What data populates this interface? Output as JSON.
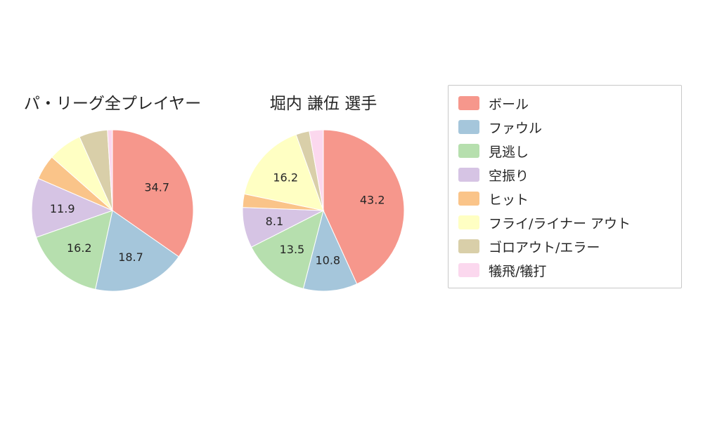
{
  "figure": {
    "background": "#ffffff",
    "text_color": "#262626"
  },
  "palette": [
    "#f6978c",
    "#a5c6db",
    "#b6dfae",
    "#d6c4e4",
    "#fac489",
    "#ffffc3",
    "#d9cfa9",
    "#fbd8ee"
  ],
  "legend": {
    "position": "right",
    "items": [
      {
        "label": "ボール",
        "color": "#f6978c"
      },
      {
        "label": "ファウル",
        "color": "#a5c6db"
      },
      {
        "label": "見逃し",
        "color": "#b6dfae"
      },
      {
        "label": "空振り",
        "color": "#d6c4e4"
      },
      {
        "label": "ヒット",
        "color": "#fac489"
      },
      {
        "label": "フライ/ライナー アウト",
        "color": "#ffffc3"
      },
      {
        "label": "ゴロアウト/エラー",
        "color": "#d9cfa9"
      },
      {
        "label": "犠飛/犠打",
        "color": "#fbd8ee"
      }
    ]
  },
  "chart_data": [
    {
      "type": "pie",
      "title": "パ・リーグ全プレイヤー",
      "start_angle_deg": 0,
      "direction": "clockwise",
      "slices": [
        {
          "label": "ボール",
          "value": 34.7,
          "display": "34.7"
        },
        {
          "label": "ファウル",
          "value": 18.7,
          "display": "18.7"
        },
        {
          "label": "見逃し",
          "value": 16.2,
          "display": "16.2"
        },
        {
          "label": "空振り",
          "value": 11.9,
          "display": "11.9"
        },
        {
          "label": "ヒット",
          "value": 5.0,
          "display": ""
        },
        {
          "label": "フライ/ライナー アウト",
          "value": 6.8,
          "display": ""
        },
        {
          "label": "ゴロアウト/エラー",
          "value": 5.7,
          "display": ""
        },
        {
          "label": "犠飛/犠打",
          "value": 1.0,
          "display": ""
        }
      ]
    },
    {
      "type": "pie",
      "title": "堀内 謙伍  選手",
      "start_angle_deg": 0,
      "direction": "clockwise",
      "slices": [
        {
          "label": "ボール",
          "value": 43.2,
          "display": "43.2"
        },
        {
          "label": "ファウル",
          "value": 10.8,
          "display": "10.8"
        },
        {
          "label": "見逃し",
          "value": 13.5,
          "display": "13.5"
        },
        {
          "label": "空振り",
          "value": 8.1,
          "display": "8.1"
        },
        {
          "label": "ヒット",
          "value": 2.7,
          "display": ""
        },
        {
          "label": "フライ/ライナー アウト",
          "value": 16.2,
          "display": "16.2"
        },
        {
          "label": "ゴロアウト/エラー",
          "value": 2.7,
          "display": ""
        },
        {
          "label": "犠飛/犠打",
          "value": 2.8,
          "display": ""
        }
      ]
    }
  ]
}
